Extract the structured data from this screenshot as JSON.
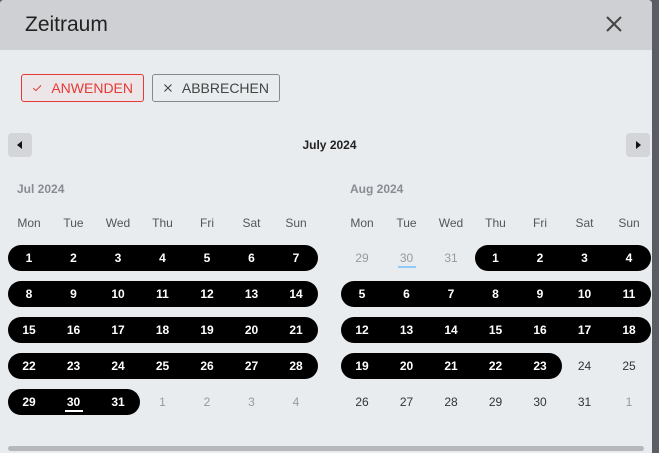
{
  "dialog": {
    "title": "Zeitraum",
    "close_icon": "close-icon"
  },
  "toolbar": {
    "apply_label": "ANWENDEN",
    "cancel_label": "ABBRECHEN",
    "apply_color": "#e53935"
  },
  "nav": {
    "title": "July 2024",
    "prev_icon": "caret-left-icon",
    "next_icon": "caret-right-icon"
  },
  "weekdays": [
    "Mon",
    "Tue",
    "Wed",
    "Thu",
    "Fri",
    "Sat",
    "Sun"
  ],
  "months": [
    {
      "label": "Jul 2024",
      "rows": [
        {
          "days": [
            "1",
            "2",
            "3",
            "4",
            "5",
            "6",
            "7"
          ],
          "sel": [
            0,
            6
          ],
          "out": []
        },
        {
          "days": [
            "8",
            "9",
            "10",
            "11",
            "12",
            "13",
            "14"
          ],
          "sel": [
            0,
            6
          ],
          "out": []
        },
        {
          "days": [
            "15",
            "16",
            "17",
            "18",
            "19",
            "20",
            "21"
          ],
          "sel": [
            0,
            6
          ],
          "out": []
        },
        {
          "days": [
            "22",
            "23",
            "24",
            "25",
            "26",
            "27",
            "28"
          ],
          "sel": [
            0,
            6
          ],
          "out": []
        },
        {
          "days": [
            "29",
            "30",
            "31",
            "1",
            "2",
            "3",
            "4"
          ],
          "sel": [
            0,
            2
          ],
          "out": [
            3,
            4,
            5,
            6
          ],
          "today": 1
        }
      ]
    },
    {
      "label": "Aug 2024",
      "rows": [
        {
          "days": [
            "29",
            "30",
            "31",
            "1",
            "2",
            "3",
            "4"
          ],
          "sel": [
            3,
            6
          ],
          "out": [
            0,
            1,
            2
          ],
          "today": 1
        },
        {
          "days": [
            "5",
            "6",
            "7",
            "8",
            "9",
            "10",
            "11"
          ],
          "sel": [
            0,
            6
          ],
          "out": []
        },
        {
          "days": [
            "12",
            "13",
            "14",
            "15",
            "16",
            "17",
            "18"
          ],
          "sel": [
            0,
            6
          ],
          "out": []
        },
        {
          "days": [
            "19",
            "20",
            "21",
            "22",
            "23",
            "24",
            "25"
          ],
          "sel": [
            0,
            4
          ],
          "out": []
        },
        {
          "days": [
            "26",
            "27",
            "28",
            "29",
            "30",
            "31",
            "1"
          ],
          "sel": null,
          "out": [
            6
          ]
        }
      ]
    }
  ],
  "colors": {
    "selection": "#000000",
    "today_marker": "#90caf9"
  }
}
